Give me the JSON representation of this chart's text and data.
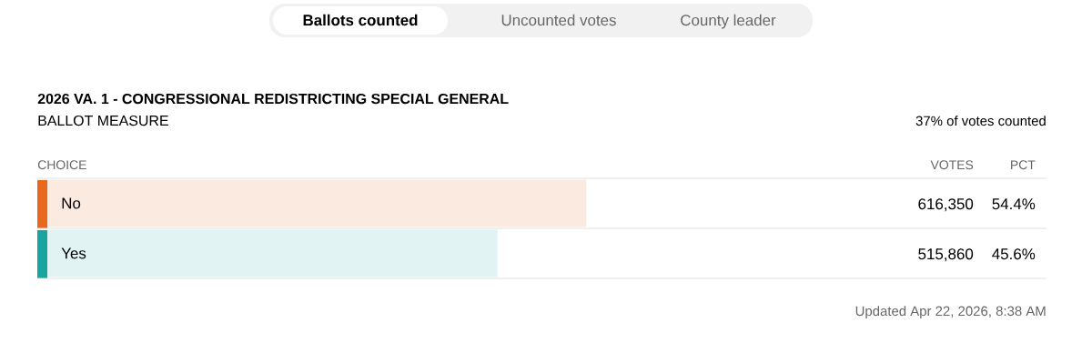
{
  "chart_data": {
    "type": "bar",
    "orientation": "horizontal",
    "title": "2026 VA. 1 - CONGRESSIONAL REDISTRICTING SPECIAL GENERAL",
    "subtitle": "BALLOT MEASURE",
    "categories": [
      "No",
      "Yes"
    ],
    "values": [
      54.4,
      45.6
    ],
    "colors": [
      "#fbeae0",
      "#e1f3f3"
    ],
    "value_labels": [
      "54.4%",
      "45.6%"
    ],
    "xlim": [
      0,
      100
    ],
    "annotations": [
      "Ballots counted",
      "Uncounted votes",
      "County leader",
      "37% of votes counted",
      "CHOICE",
      "VOTES",
      "PCT",
      "616,350",
      "515,860",
      "Updated Apr 22, 2026, 8:38 AM"
    ]
  }
}
